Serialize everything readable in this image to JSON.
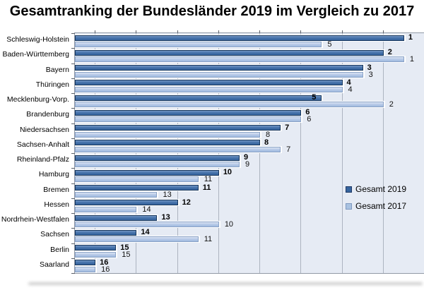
{
  "title": "Gesamtranking der Bundesländer 2019 im Vergleich zu 2017",
  "legend": {
    "items": [
      {
        "label": "Gesamt 2019",
        "color": "#36649E",
        "border": "#1F3864"
      },
      {
        "label": "Gesamt 2017",
        "color": "#A9C2E1",
        "border": "#7F99C0"
      }
    ]
  },
  "chart_data": {
    "type": "bar",
    "orientation": "horizontal",
    "title": "Gesamtranking der Bundesländer 2019 im Vergleich zu 2017",
    "categories": [
      "Schleswig-Holstein",
      "Baden-Württemberg",
      "Bayern",
      "Thüringen",
      "Mecklenburg-Vorp.",
      "Brandenburg",
      "Niedersachsen",
      "Sachsen-Anhalt",
      "Rheinland-Pfalz",
      "Hamburg",
      "Bremen",
      "Hessen",
      "Nordrhein-Westfalen",
      "Sachsen",
      "Berlin",
      "Saarland"
    ],
    "series": [
      {
        "name": "Gesamt 2019",
        "color": "#36649E",
        "ranks": [
          1,
          2,
          3,
          4,
          5,
          6,
          7,
          8,
          9,
          10,
          11,
          12,
          13,
          14,
          15,
          16
        ]
      },
      {
        "name": "Gesamt 2017",
        "color": "#A9C2E1",
        "ranks": [
          5,
          1,
          3,
          4,
          2,
          6,
          8,
          7,
          9,
          11,
          13,
          14,
          10,
          11,
          15,
          16
        ]
      }
    ],
    "value_encoding": "bar length = 17 - rank (rank 1 = longest bar)",
    "data_labels": "rank number shown at the end of each bar",
    "xlim": [
      0,
      17
    ],
    "gridlines_at": [
      1,
      3,
      5,
      7,
      9,
      11,
      13,
      15,
      17
    ],
    "value_axis_labels_visible": false,
    "legend_position": "inside right",
    "inside_label_categories": [
      "Mecklenburg-Vorp."
    ],
    "plot_background": "#E6EBF4"
  }
}
